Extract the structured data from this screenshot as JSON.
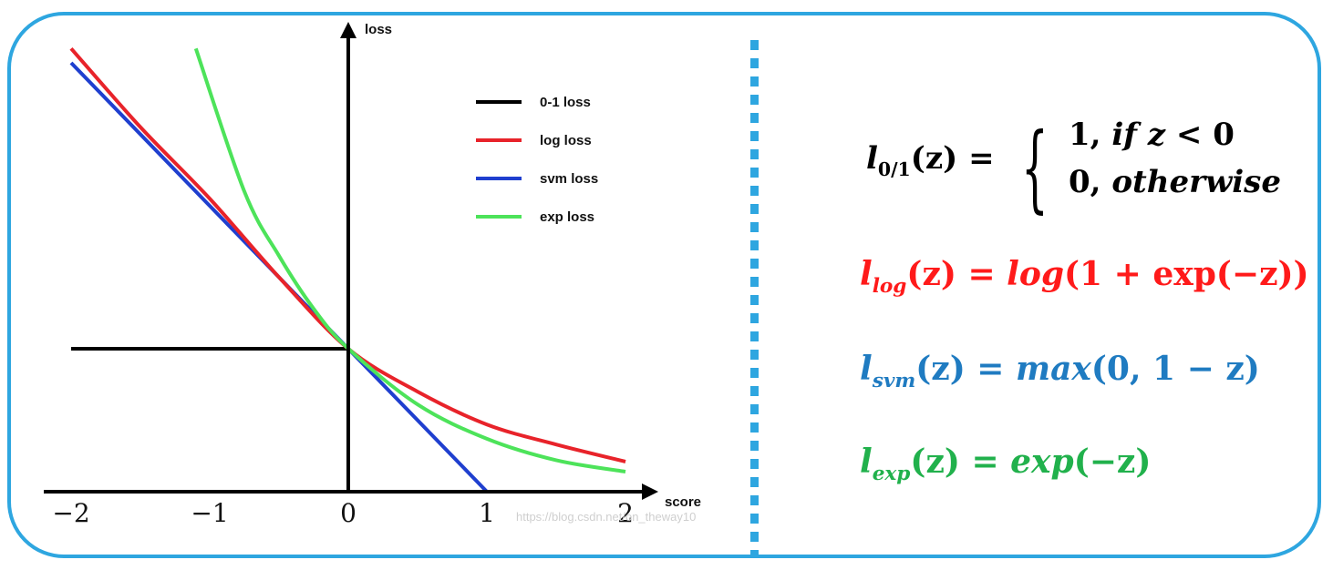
{
  "chart_data": {
    "type": "line",
    "title": "",
    "xlabel": "score",
    "ylabel": "loss",
    "xlim": [
      -2,
      2
    ],
    "ylim": [
      0,
      3.2
    ],
    "x_ticks": [
      "−2",
      "−1",
      "0",
      "1",
      "2"
    ],
    "legend_position": "top-right",
    "grid": false,
    "series": [
      {
        "name": "0-1 loss",
        "color": "#000000",
        "x": [
          -2,
          0
        ],
        "y": [
          1,
          1
        ]
      },
      {
        "name": "log loss",
        "color": "#e8232a",
        "x": [
          -2,
          -1.5,
          -1,
          -0.5,
          0,
          0.5,
          1,
          1.5,
          2
        ],
        "y": [
          3.1,
          2.55,
          2.05,
          1.5,
          1.0,
          0.7,
          0.47,
          0.33,
          0.21
        ]
      },
      {
        "name": "svm loss",
        "color": "#1f3fcf",
        "x": [
          -2,
          1,
          2
        ],
        "y": [
          3.0,
          0,
          0
        ]
      },
      {
        "name": "exp loss",
        "color": "#4de35a",
        "x": [
          -1.1,
          -0.75,
          -0.5,
          -0.25,
          0,
          0.5,
          1,
          1.5,
          2
        ],
        "y": [
          3.1,
          2.1,
          1.65,
          1.28,
          1.0,
          0.61,
          0.37,
          0.22,
          0.14
        ]
      }
    ]
  },
  "equations": {
    "zero_one": {
      "lhs_base": "l",
      "lhs_sub": "0/1",
      "lhs_arg": "(z) =",
      "case1_pre": "1,",
      "case1_italic": "if z",
      "case1_post": "< 0",
      "case2_pre": "0,",
      "case2_italic": "otherwise"
    },
    "log": {
      "base": "l",
      "sub": "log",
      "rhs_pre": "(z) = ",
      "rhs_func": "log",
      "rhs_post": "(1 + exp(−z))",
      "color": "#ff1a1a"
    },
    "svm": {
      "base": "l",
      "sub": "svm",
      "rhs_pre": "(z) = ",
      "rhs_func": "max",
      "rhs_post": "(0, 1 − z)",
      "color": "#1f7bc1"
    },
    "exp": {
      "base": "l",
      "sub": "exp",
      "rhs_pre": "(z) = ",
      "rhs_func": "exp",
      "rhs_post": "(−z)",
      "color": "#21b14c"
    }
  },
  "watermark": "https://blog.csdn.net/on_theway10",
  "colors": {
    "frame": "#2ea6e0",
    "divider": "#2ea6e0"
  }
}
